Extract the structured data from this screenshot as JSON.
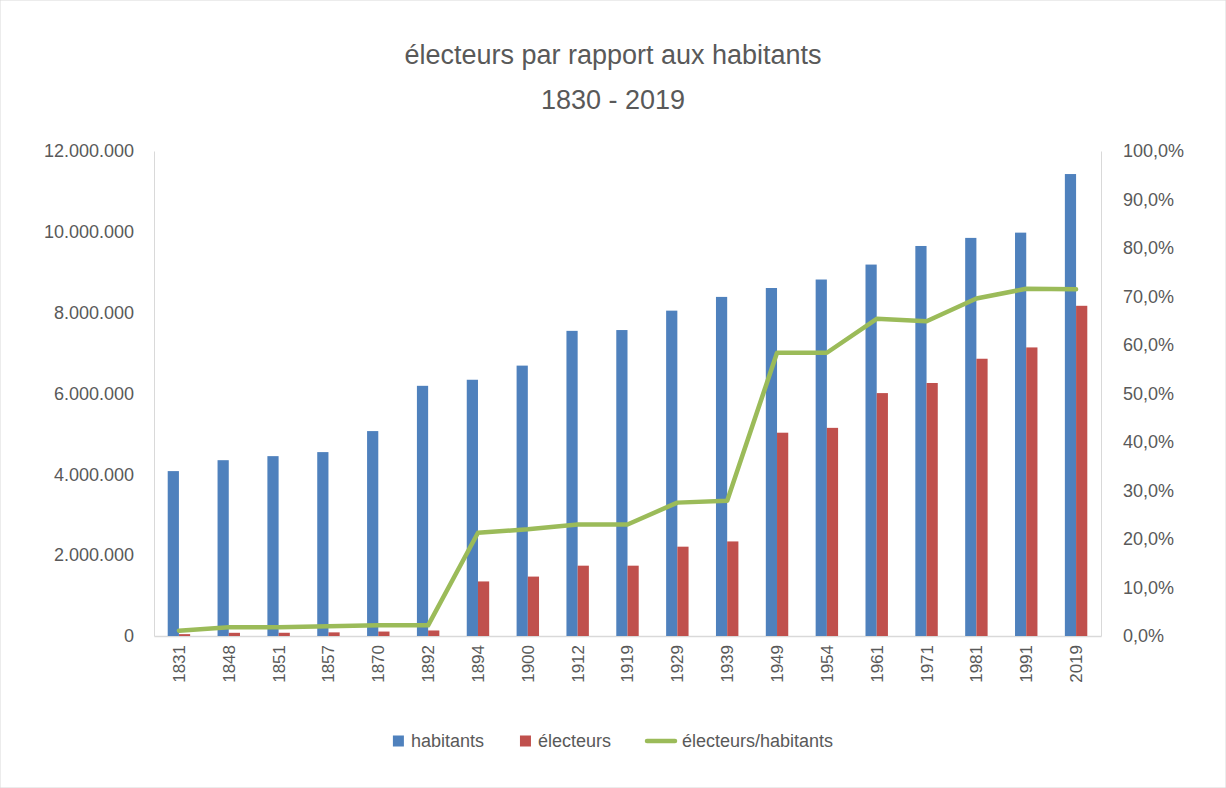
{
  "chart_data": {
    "type": "bar",
    "title": "électeurs par rapport aux habitants",
    "subtitle": "1830 - 2019",
    "categories": [
      "1831",
      "1848",
      "1851",
      "1857",
      "1870",
      "1892",
      "1894",
      "1900",
      "1912",
      "1919",
      "1929",
      "1939",
      "1949",
      "1954",
      "1961",
      "1971",
      "1981",
      "1991",
      "2019"
    ],
    "series": [
      {
        "name": "habitants",
        "color": "#4f81bd",
        "values": [
          4080000,
          4350000,
          4450000,
          4550000,
          5070000,
          6190000,
          6340000,
          6690000,
          7550000,
          7570000,
          8050000,
          8390000,
          8610000,
          8820000,
          9190000,
          9650000,
          9850000,
          9980000,
          11430000
        ]
      },
      {
        "name": "électeurs",
        "color": "#c0504d",
        "values": [
          46000,
          79000,
          80000,
          90000,
          110000,
          137000,
          1350000,
          1470000,
          1740000,
          1740000,
          2210000,
          2340000,
          5030000,
          5150000,
          6010000,
          6260000,
          6860000,
          7140000,
          8170000
        ]
      },
      {
        "name": "électeurs/habitants",
        "color": "#9bbb59",
        "type": "line",
        "axis": "y2",
        "values": [
          1.1,
          1.8,
          1.8,
          2.0,
          2.2,
          2.2,
          21.3,
          22.0,
          23.0,
          23.0,
          27.5,
          27.9,
          58.4,
          58.4,
          65.4,
          64.9,
          69.6,
          71.6,
          71.5
        ]
      }
    ],
    "ylim": [
      0,
      12000000
    ],
    "yticks": [
      0,
      {
        "value": 2000000,
        "label": "2.000.000"
      },
      {
        "value": 4000000,
        "label": "4.000.000"
      },
      {
        "value": 6000000,
        "label": "6.000.000"
      },
      {
        "value": 8000000,
        "label": "8.000.000"
      },
      {
        "value": 10000000,
        "label": "10.000.000"
      },
      {
        "value": 12000000,
        "label": "12.000.000"
      }
    ],
    "y2lim": [
      0,
      100
    ],
    "y2ticks": [
      {
        "value": 0,
        "label": "0,0%"
      },
      {
        "value": 10,
        "label": "10,0%"
      },
      {
        "value": 20,
        "label": "20,0%"
      },
      {
        "value": 30,
        "label": "30,0%"
      },
      {
        "value": 40,
        "label": "40,0%"
      },
      {
        "value": 50,
        "label": "50,0%"
      },
      {
        "value": 60,
        "label": "60,0%"
      },
      {
        "value": 70,
        "label": "70,0%"
      },
      {
        "value": 80,
        "label": "80,0%"
      },
      {
        "value": 90,
        "label": "90,0%"
      },
      {
        "value": 100,
        "label": "100,0%"
      }
    ],
    "grid": false,
    "legend": "bottom"
  }
}
